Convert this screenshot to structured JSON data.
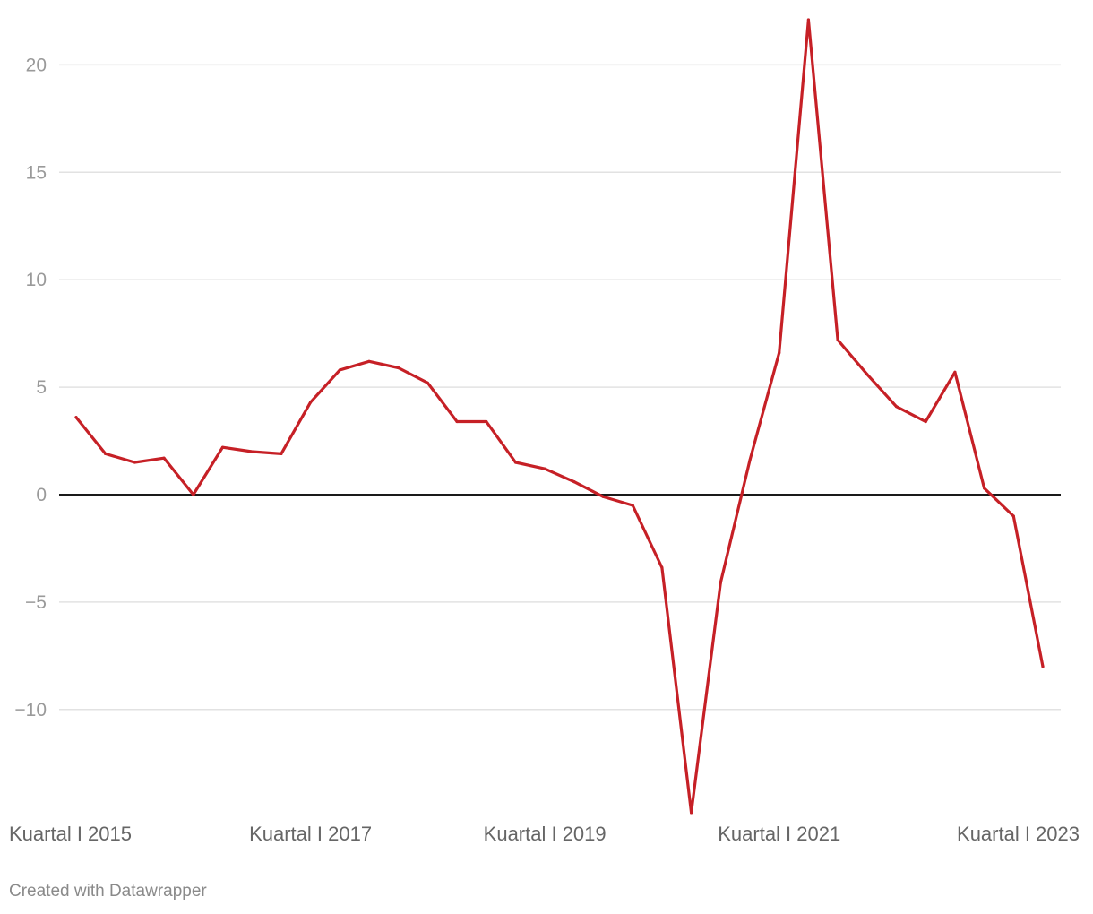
{
  "chart_data": {
    "type": "line",
    "title": "",
    "xlabel": "",
    "ylabel": "",
    "x_tick_labels": [
      "Kuartal I 2015",
      "Kuartal I 2017",
      "Kuartal I 2019",
      "Kuartal I 2021",
      "Kuartal I 2023"
    ],
    "x_tick_indices": [
      0,
      8,
      16,
      24,
      32
    ],
    "y_ticks": [
      20,
      15,
      10,
      5,
      0,
      -5,
      -10
    ],
    "y_tick_labels": [
      "20",
      "15",
      "10",
      "5",
      "0",
      "−5",
      "−10"
    ],
    "ylim": [
      -14.8,
      22.1
    ],
    "grid": true,
    "series": [
      {
        "color": "#c62026",
        "values": [
          3.6,
          1.9,
          1.5,
          1.7,
          0.0,
          2.2,
          2.0,
          1.9,
          4.3,
          5.8,
          6.2,
          5.9,
          5.2,
          3.4,
          3.4,
          1.5,
          1.2,
          0.6,
          -0.1,
          -0.5,
          -3.4,
          -14.8,
          -4.1,
          1.6,
          6.6,
          22.1,
          7.2,
          5.6,
          4.1,
          3.4,
          5.7,
          0.3,
          -1.0,
          -8.0
        ]
      }
    ]
  },
  "footer": {
    "credit": "Created with Datawrapper"
  }
}
